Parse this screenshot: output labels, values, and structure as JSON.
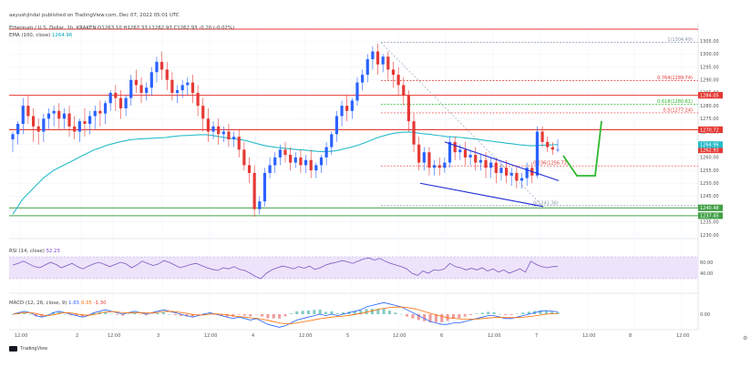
{
  "header": {
    "author_line": "aayushjindal published on TradingView.com, Dec 07, 2022 05:01 UTC",
    "symbol_line": "Ethereum / U.S. Dollar, 1h, KRAKEN  O1263.10  H1267.33  L1262.93  C1262.93  -0.20 (-0.02%)",
    "ema_line_label": "EMA (100, close)",
    "ema_line_value": "1264.96"
  },
  "rsi": {
    "label": "RSI (14, close)",
    "value": "52.25"
  },
  "macd": {
    "label": "MACD (12, 26, close, 9)",
    "v1": "1.65",
    "v2": "0.35",
    "v3": "-1.30"
  },
  "footer": {
    "brand": "TradingView"
  },
  "colors": {
    "up": "#2962ff",
    "down": "#e53935",
    "ema": "#26bcc9",
    "resistance": "#e53935",
    "support": "#43a047",
    "pattern": "#1e2bd6",
    "projection": "#2eb82e",
    "rsi_band": "#ede3fa"
  },
  "chart_data": [
    {
      "type": "candlestick",
      "title": "Ethereum / U.S. Dollar, 1h, KRAKEN",
      "ylim": [
        1230,
        1310
      ],
      "x_ticks": [
        "12:00",
        "2",
        "12:00",
        "3",
        "12:00",
        "4",
        "12:00",
        "5",
        "12:00",
        "6",
        "12:00",
        "7",
        "12:00",
        "8",
        "12:00"
      ],
      "y_ticks": [
        "1305.00",
        "1300.00",
        "1295.00",
        "1290.00",
        "1285.00",
        "1280.00",
        "1275.00",
        "1270.00",
        "1265.00",
        "1260.00",
        "1255.00",
        "1250.00",
        "1245.00",
        "1240.00",
        "1235.00",
        "1230.00"
      ],
      "candles": [
        {
          "o": 1267,
          "h": 1270,
          "c": 1269,
          "l": 1262
        },
        {
          "o": 1269,
          "h": 1274,
          "c": 1273,
          "l": 1265
        },
        {
          "o": 1273,
          "h": 1283,
          "c": 1280,
          "l": 1269
        },
        {
          "o": 1280,
          "h": 1284,
          "c": 1276,
          "l": 1273
        },
        {
          "o": 1276,
          "h": 1279,
          "c": 1272,
          "l": 1266
        },
        {
          "o": 1272,
          "h": 1275,
          "c": 1270,
          "l": 1265
        },
        {
          "o": 1270,
          "h": 1277,
          "c": 1275,
          "l": 1266
        },
        {
          "o": 1275,
          "h": 1279,
          "c": 1277,
          "l": 1271
        },
        {
          "o": 1277,
          "h": 1280,
          "c": 1278,
          "l": 1272
        },
        {
          "o": 1278,
          "h": 1281,
          "c": 1275,
          "l": 1271
        },
        {
          "o": 1275,
          "h": 1279,
          "c": 1277,
          "l": 1271
        },
        {
          "o": 1277,
          "h": 1280,
          "c": 1272,
          "l": 1268
        },
        {
          "o": 1272,
          "h": 1276,
          "c": 1270,
          "l": 1267
        },
        {
          "o": 1270,
          "h": 1275,
          "c": 1274,
          "l": 1266
        },
        {
          "o": 1274,
          "h": 1279,
          "c": 1273,
          "l": 1268
        },
        {
          "o": 1273,
          "h": 1278,
          "c": 1276,
          "l": 1269
        },
        {
          "o": 1276,
          "h": 1280,
          "c": 1278,
          "l": 1271
        },
        {
          "o": 1278,
          "h": 1282,
          "c": 1277,
          "l": 1272
        },
        {
          "o": 1277,
          "h": 1282,
          "c": 1281,
          "l": 1273
        },
        {
          "o": 1281,
          "h": 1286,
          "c": 1285,
          "l": 1278
        },
        {
          "o": 1285,
          "h": 1288,
          "c": 1283,
          "l": 1278
        },
        {
          "o": 1283,
          "h": 1286,
          "c": 1279,
          "l": 1275
        },
        {
          "o": 1279,
          "h": 1284,
          "c": 1283,
          "l": 1276
        },
        {
          "o": 1283,
          "h": 1292,
          "c": 1290,
          "l": 1280
        },
        {
          "o": 1290,
          "h": 1294,
          "c": 1288,
          "l": 1285
        },
        {
          "o": 1288,
          "h": 1291,
          "c": 1285,
          "l": 1281
        },
        {
          "o": 1285,
          "h": 1289,
          "c": 1287,
          "l": 1282
        },
        {
          "o": 1287,
          "h": 1295,
          "c": 1293,
          "l": 1284
        },
        {
          "o": 1293,
          "h": 1299,
          "c": 1297,
          "l": 1289
        },
        {
          "o": 1297,
          "h": 1301,
          "c": 1294,
          "l": 1290
        },
        {
          "o": 1294,
          "h": 1297,
          "c": 1290,
          "l": 1286
        },
        {
          "o": 1290,
          "h": 1293,
          "c": 1285,
          "l": 1282
        },
        {
          "o": 1285,
          "h": 1288,
          "c": 1286,
          "l": 1281
        },
        {
          "o": 1286,
          "h": 1290,
          "c": 1288,
          "l": 1283
        },
        {
          "o": 1288,
          "h": 1291,
          "c": 1289,
          "l": 1284
        },
        {
          "o": 1289,
          "h": 1292,
          "c": 1285,
          "l": 1281
        },
        {
          "o": 1285,
          "h": 1288,
          "c": 1280,
          "l": 1276
        },
        {
          "o": 1280,
          "h": 1283,
          "c": 1275,
          "l": 1270
        },
        {
          "o": 1275,
          "h": 1279,
          "c": 1270,
          "l": 1266
        },
        {
          "o": 1270,
          "h": 1274,
          "c": 1272,
          "l": 1267
        },
        {
          "o": 1272,
          "h": 1275,
          "c": 1269,
          "l": 1265
        },
        {
          "o": 1269,
          "h": 1272,
          "c": 1270,
          "l": 1266
        },
        {
          "o": 1270,
          "h": 1273,
          "c": 1267,
          "l": 1264
        },
        {
          "o": 1267,
          "h": 1270,
          "c": 1268,
          "l": 1264
        },
        {
          "o": 1268,
          "h": 1271,
          "c": 1263,
          "l": 1260
        },
        {
          "o": 1263,
          "h": 1266,
          "c": 1257,
          "l": 1255
        },
        {
          "o": 1257,
          "h": 1260,
          "c": 1254,
          "l": 1250
        },
        {
          "o": 1254,
          "h": 1257,
          "c": 1240,
          "l": 1237
        },
        {
          "o": 1240,
          "h": 1245,
          "c": 1243,
          "l": 1238
        },
        {
          "o": 1243,
          "h": 1256,
          "c": 1254,
          "l": 1241
        },
        {
          "o": 1254,
          "h": 1260,
          "c": 1257,
          "l": 1252
        },
        {
          "o": 1257,
          "h": 1262,
          "c": 1260,
          "l": 1254
        },
        {
          "o": 1260,
          "h": 1265,
          "c": 1263,
          "l": 1257
        },
        {
          "o": 1263,
          "h": 1266,
          "c": 1261,
          "l": 1258
        },
        {
          "o": 1261,
          "h": 1264,
          "c": 1258,
          "l": 1255
        },
        {
          "o": 1258,
          "h": 1262,
          "c": 1260,
          "l": 1256
        },
        {
          "o": 1260,
          "h": 1263,
          "c": 1257,
          "l": 1254
        },
        {
          "o": 1257,
          "h": 1261,
          "c": 1259,
          "l": 1254
        },
        {
          "o": 1259,
          "h": 1263,
          "c": 1255,
          "l": 1252
        },
        {
          "o": 1255,
          "h": 1258,
          "c": 1257,
          "l": 1252
        },
        {
          "o": 1257,
          "h": 1261,
          "c": 1260,
          "l": 1254
        },
        {
          "o": 1260,
          "h": 1266,
          "c": 1264,
          "l": 1257
        },
        {
          "o": 1264,
          "h": 1270,
          "c": 1269,
          "l": 1261
        },
        {
          "o": 1269,
          "h": 1278,
          "c": 1276,
          "l": 1266
        },
        {
          "o": 1276,
          "h": 1282,
          "c": 1280,
          "l": 1272
        },
        {
          "o": 1280,
          "h": 1284,
          "c": 1278,
          "l": 1274
        },
        {
          "o": 1278,
          "h": 1283,
          "c": 1282,
          "l": 1275
        },
        {
          "o": 1282,
          "h": 1291,
          "c": 1289,
          "l": 1280
        },
        {
          "o": 1289,
          "h": 1294,
          "c": 1292,
          "l": 1286
        },
        {
          "o": 1292,
          "h": 1300,
          "c": 1298,
          "l": 1289
        },
        {
          "o": 1298,
          "h": 1303,
          "c": 1301,
          "l": 1294
        },
        {
          "o": 1301,
          "h": 1304,
          "c": 1296,
          "l": 1292
        },
        {
          "o": 1296,
          "h": 1300,
          "c": 1299,
          "l": 1293
        },
        {
          "o": 1299,
          "h": 1301,
          "c": 1294,
          "l": 1290
        },
        {
          "o": 1294,
          "h": 1297,
          "c": 1292,
          "l": 1287
        },
        {
          "o": 1292,
          "h": 1295,
          "c": 1288,
          "l": 1284
        },
        {
          "o": 1288,
          "h": 1291,
          "c": 1284,
          "l": 1280
        },
        {
          "o": 1284,
          "h": 1286,
          "c": 1274,
          "l": 1270
        },
        {
          "o": 1274,
          "h": 1277,
          "c": 1265,
          "l": 1262
        },
        {
          "o": 1265,
          "h": 1268,
          "c": 1258,
          "l": 1255
        },
        {
          "o": 1258,
          "h": 1264,
          "c": 1262,
          "l": 1255
        },
        {
          "o": 1262,
          "h": 1264,
          "c": 1256,
          "l": 1253
        },
        {
          "o": 1256,
          "h": 1259,
          "c": 1257,
          "l": 1253
        },
        {
          "o": 1257,
          "h": 1260,
          "c": 1256,
          "l": 1253
        },
        {
          "o": 1256,
          "h": 1260,
          "c": 1258,
          "l": 1254
        },
        {
          "o": 1258,
          "h": 1268,
          "c": 1266,
          "l": 1256
        },
        {
          "o": 1266,
          "h": 1268,
          "c": 1262,
          "l": 1259
        },
        {
          "o": 1262,
          "h": 1265,
          "c": 1263,
          "l": 1259
        },
        {
          "o": 1263,
          "h": 1266,
          "c": 1260,
          "l": 1257
        },
        {
          "o": 1260,
          "h": 1263,
          "c": 1261,
          "l": 1257
        },
        {
          "o": 1261,
          "h": 1264,
          "c": 1258,
          "l": 1255
        },
        {
          "o": 1258,
          "h": 1261,
          "c": 1259,
          "l": 1255
        },
        {
          "o": 1259,
          "h": 1262,
          "c": 1256,
          "l": 1252
        },
        {
          "o": 1256,
          "h": 1260,
          "c": 1258,
          "l": 1252
        },
        {
          "o": 1258,
          "h": 1260,
          "c": 1254,
          "l": 1250
        },
        {
          "o": 1254,
          "h": 1258,
          "c": 1256,
          "l": 1251
        },
        {
          "o": 1256,
          "h": 1259,
          "c": 1253,
          "l": 1250
        },
        {
          "o": 1253,
          "h": 1256,
          "c": 1254,
          "l": 1249
        },
        {
          "o": 1254,
          "h": 1257,
          "c": 1251,
          "l": 1248
        },
        {
          "o": 1251,
          "h": 1254,
          "c": 1252,
          "l": 1248
        },
        {
          "o": 1252,
          "h": 1258,
          "c": 1256,
          "l": 1249
        },
        {
          "o": 1256,
          "h": 1258,
          "c": 1253,
          "l": 1250
        },
        {
          "o": 1253,
          "h": 1272,
          "c": 1270,
          "l": 1252
        },
        {
          "o": 1270,
          "h": 1272,
          "c": 1266,
          "l": 1264
        },
        {
          "o": 1266,
          "h": 1268,
          "c": 1264,
          "l": 1262
        },
        {
          "o": 1264,
          "h": 1266,
          "c": 1263,
          "l": 1261
        },
        {
          "o": 1263,
          "h": 1267,
          "c": 1263,
          "l": 1262
        }
      ],
      "ema": [
        1238,
        1241,
        1244,
        1246,
        1248,
        1250,
        1252,
        1253.5,
        1255,
        1256,
        1257,
        1258,
        1259,
        1260,
        1261,
        1262,
        1263,
        1263.6,
        1264.4,
        1265,
        1265.5,
        1266,
        1266.4,
        1266.8,
        1267,
        1267.2,
        1267.3,
        1267.4,
        1267.5,
        1267.6,
        1267.7,
        1268,
        1268.2,
        1268.4,
        1268.5,
        1268.6,
        1268.7,
        1268.8,
        1268.8,
        1268.6,
        1268.2,
        1267.9,
        1267.6,
        1267.3,
        1267.1,
        1266.8,
        1266.4,
        1265.8,
        1265.3,
        1264.8,
        1264.4,
        1264.1,
        1263.8,
        1263.6,
        1263.4,
        1263.2,
        1263,
        1262.9,
        1262.7,
        1262.5,
        1262.3,
        1262.2,
        1262.3,
        1262.5,
        1262.8,
        1263.3,
        1263.8,
        1264.3,
        1264.9,
        1265.6,
        1266.4,
        1267.2,
        1267.9,
        1268.5,
        1269,
        1269.4,
        1269.7,
        1269.8,
        1269.8,
        1269.6,
        1269.3,
        1269.1,
        1268.9,
        1268.6,
        1268.4,
        1268.1,
        1268,
        1267.9,
        1267.7,
        1267.5,
        1267.3,
        1267.1,
        1266.8,
        1266.5,
        1266.3,
        1266,
        1265.8,
        1265.5,
        1265.3,
        1265,
        1264.8,
        1264.6,
        1264.5,
        1264.6,
        1264.7,
        1264.8,
        1264.9,
        1264.96
      ],
      "levels": [
        {
          "label": "1(1304.49)",
          "value": 1304.49
        },
        {
          "label": "0.764(1289.74)",
          "value": 1289.74
        },
        {
          "label": "0.618(1280.61)",
          "value": 1280.61
        },
        {
          "label": "0.5(1277.24)",
          "value": 1277.24
        },
        {
          "label": "0.236(1256.72)",
          "value": 1256.72
        },
        {
          "label": "0(1241.36)",
          "value": 1241.36
        }
      ],
      "badges": [
        {
          "text": "1284.05",
          "value": 1284.05,
          "color": "#e53935"
        },
        {
          "text": "1270.72",
          "value": 1270.72,
          "color": "#e53935"
        },
        {
          "text": "1262.93",
          "value": 1262.93,
          "color": "#e53935"
        },
        {
          "text": "1264.96",
          "value": 1264.96,
          "color": "#26bcc9"
        },
        {
          "text": "1240.48",
          "value": 1240.48,
          "color": "#43a047"
        },
        {
          "text": "1237.45",
          "value": 1237.45,
          "color": "#43a047"
        }
      ]
    },
    {
      "type": "line",
      "title": "RSI (14, close)",
      "ylim": [
        10,
        90
      ],
      "y_ticks": [
        "60.00",
        "40.00"
      ],
      "band": [
        30,
        70
      ],
      "values": [
        55,
        58,
        62,
        57,
        52,
        50,
        55,
        60,
        56,
        50,
        54,
        58,
        52,
        48,
        53,
        57,
        60,
        56,
        52,
        56,
        60,
        57,
        50,
        55,
        62,
        58,
        54,
        57,
        63,
        60,
        55,
        50,
        53,
        56,
        58,
        54,
        50,
        47,
        45,
        50,
        48,
        52,
        47,
        45,
        40,
        34,
        30,
        40,
        46,
        50,
        53,
        51,
        48,
        52,
        49,
        53,
        47,
        50,
        55,
        58,
        60,
        63,
        61,
        58,
        62,
        66,
        68,
        64,
        67,
        62,
        58,
        55,
        52,
        48,
        40,
        36,
        44,
        40,
        46,
        45,
        48,
        58,
        52,
        50,
        46,
        49,
        46,
        50,
        44,
        48,
        42,
        46,
        40,
        44,
        48,
        42,
        62,
        56,
        52,
        50,
        52,
        52.25
      ]
    },
    {
      "type": "line",
      "title": "MACD (12, 26, close, 9)",
      "y_ticks": [
        "0.00"
      ],
      "values": [
        0,
        1,
        2,
        1,
        -1,
        -2,
        -1,
        1,
        2,
        1,
        0,
        -1,
        -2,
        -1,
        1,
        2,
        3,
        2,
        1,
        0,
        1,
        2,
        1,
        0,
        1,
        2,
        3,
        2,
        1,
        0,
        -1,
        -2,
        -1,
        0,
        1,
        0,
        -1,
        -2,
        -3,
        -2,
        -3,
        -4,
        -3,
        -5,
        -7,
        -8,
        -9,
        -8,
        -6,
        -4,
        -3,
        -2,
        -1,
        0,
        -1,
        0,
        -1,
        0,
        1,
        2,
        3,
        5,
        6,
        7,
        8,
        7,
        6,
        5,
        3,
        1,
        -1,
        -3,
        -5,
        -6,
        -7,
        -7,
        -6,
        -6,
        -5,
        -4,
        -3,
        -2,
        -1,
        -1,
        -2,
        -3,
        -3,
        -2,
        -1,
        0,
        1,
        2,
        2.5,
        2,
        1.65
      ],
      "signal": [
        0,
        0.5,
        1,
        1,
        0.5,
        -0.5,
        -1,
        -0.5,
        0.5,
        1,
        0.8,
        0.2,
        -0.5,
        -0.8,
        -0.2,
        0.6,
        1.5,
        1.8,
        1.5,
        1,
        0.8,
        1,
        1.1,
        0.8,
        0.8,
        1.2,
        1.8,
        2,
        1.7,
        1.2,
        0.6,
        -0.2,
        -0.6,
        -0.5,
        0,
        0.2,
        0,
        -0.5,
        -1.2,
        -1.6,
        -2,
        -2.5,
        -2.8,
        -3.4,
        -4.2,
        -5.1,
        -6,
        -6.6,
        -6.5,
        -6,
        -5.3,
        -4.6,
        -3.9,
        -3.1,
        -2.6,
        -2,
        -1.7,
        -1.3,
        -0.8,
        -0.2,
        0.5,
        1.4,
        2.3,
        3.2,
        4,
        4.6,
        4.9,
        4.9,
        4.6,
        3.9,
        3,
        1.8,
        0.6,
        -0.5,
        -1.5,
        -2.4,
        -2.8,
        -3.2,
        -3.4,
        -3.4,
        -3.3,
        -3,
        -2.6,
        -2.3,
        -2.2,
        -2.3,
        -2.4,
        -2.3,
        -2.1,
        -1.7,
        -1.2,
        -0.6,
        0,
        0.4,
        0.35
      ]
    }
  ]
}
